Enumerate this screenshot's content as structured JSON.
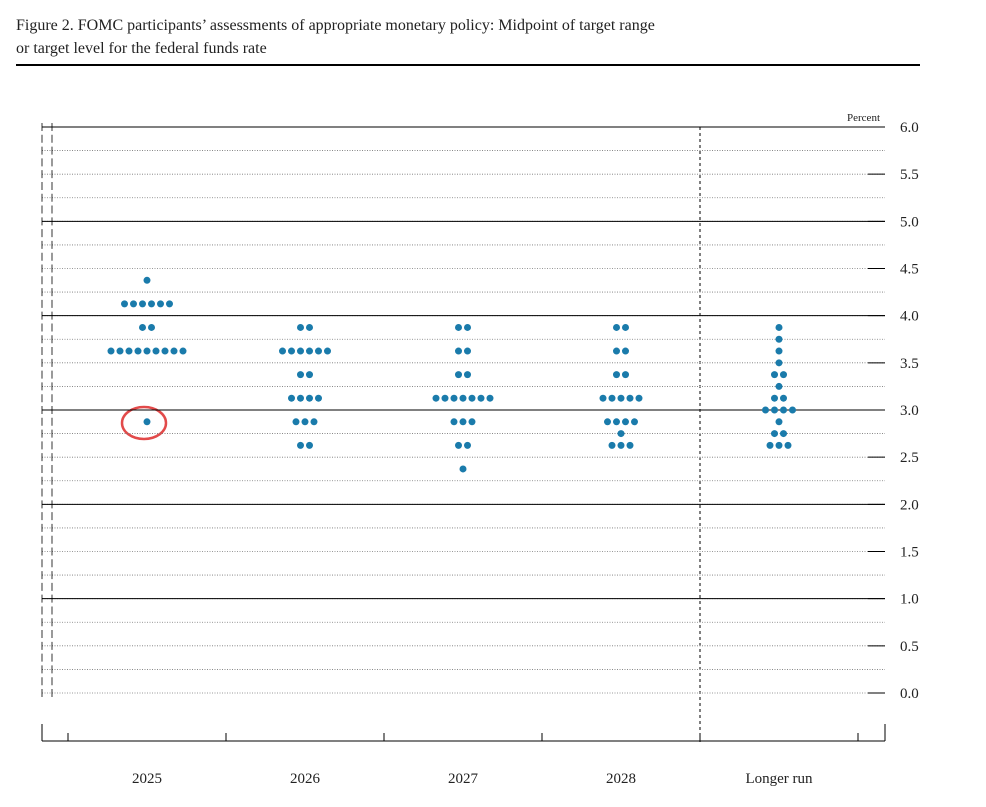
{
  "chart_data": {
    "type": "dot",
    "title": "Figure 2. FOMC participants’ assessments of appropriate monetary policy: Midpoint of target range",
    "title_line2": "or target level for the federal funds rate",
    "unit_label": "Percent",
    "categories": [
      "2025",
      "2026",
      "2027",
      "2028",
      "Longer run"
    ],
    "dots": [
      [
        4.375,
        4.125,
        4.125,
        4.125,
        4.125,
        4.125,
        4.125,
        3.875,
        3.875,
        3.625,
        3.625,
        3.625,
        3.625,
        3.625,
        3.625,
        3.625,
        3.625,
        3.625,
        2.875
      ],
      [
        3.875,
        3.875,
        3.625,
        3.625,
        3.625,
        3.625,
        3.625,
        3.625,
        3.375,
        3.375,
        3.125,
        3.125,
        3.125,
        3.125,
        2.875,
        2.875,
        2.875,
        2.625,
        2.625
      ],
      [
        3.875,
        3.875,
        3.625,
        3.625,
        3.375,
        3.375,
        3.125,
        3.125,
        3.125,
        3.125,
        3.125,
        3.125,
        3.125,
        2.875,
        2.875,
        2.875,
        2.625,
        2.625,
        2.375
      ],
      [
        3.875,
        3.875,
        3.625,
        3.625,
        3.375,
        3.375,
        3.125,
        3.125,
        3.125,
        3.125,
        3.125,
        2.875,
        2.875,
        2.875,
        2.875,
        2.75,
        2.625,
        2.625,
        2.625
      ],
      [
        3.875,
        3.75,
        3.625,
        3.5,
        3.375,
        3.375,
        3.25,
        3.125,
        3.125,
        3.0,
        3.0,
        3.0,
        3.0,
        2.875,
        2.75,
        2.75,
        2.625,
        2.625,
        2.625
      ]
    ],
    "color": "#1a7bab",
    "ylim": [
      0,
      6
    ],
    "yticks": [
      {
        "value": 0,
        "label": "0.0"
      },
      {
        "value": 0.5,
        "label": "0.5"
      },
      {
        "value": 1,
        "label": "1.0"
      },
      {
        "value": 1.5,
        "label": "1.5"
      },
      {
        "value": 2,
        "label": "2.0"
      },
      {
        "value": 2.5,
        "label": "2.5"
      },
      {
        "value": 3,
        "label": "3.0"
      },
      {
        "value": 3.5,
        "label": "3.5"
      },
      {
        "value": 4,
        "label": "4.0"
      },
      {
        "value": 4.5,
        "label": "4.5"
      },
      {
        "value": 5,
        "label": "5.0"
      },
      {
        "value": 5.5,
        "label": "5.5"
      },
      {
        "value": 6,
        "label": "6.0"
      }
    ],
    "grid": true
  }
}
